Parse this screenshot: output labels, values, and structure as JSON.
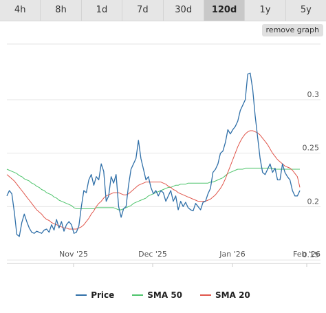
{
  "tabs": [
    {
      "label": "4h",
      "active": false
    },
    {
      "label": "8h",
      "active": false
    },
    {
      "label": "1d",
      "active": false
    },
    {
      "label": "7d",
      "active": false
    },
    {
      "label": "30d",
      "active": false
    },
    {
      "label": "120d",
      "active": true
    },
    {
      "label": "1y",
      "active": false
    },
    {
      "label": "5y",
      "active": false
    }
  ],
  "remove_button_label": "remove graph",
  "chart_data": {
    "type": "line",
    "x_ticks": [
      "Nov '25",
      "Dec '25",
      "Jan '26",
      "Feb '26"
    ],
    "y_ticks": [
      0.15,
      0.2,
      0.25,
      0.3
    ],
    "ylim": [
      0.15,
      0.33
    ],
    "grid": "horizontal",
    "legend_position": "bottom",
    "series": [
      {
        "name": "Price",
        "color": "#2f6fa8",
        "values": [
          0.21,
          0.215,
          0.212,
          0.195,
          0.174,
          0.172,
          0.185,
          0.193,
          0.186,
          0.18,
          0.176,
          0.175,
          0.177,
          0.176,
          0.175,
          0.178,
          0.179,
          0.176,
          0.183,
          0.178,
          0.188,
          0.18,
          0.186,
          0.177,
          0.183,
          0.186,
          0.183,
          0.175,
          0.176,
          0.182,
          0.2,
          0.215,
          0.213,
          0.225,
          0.23,
          0.22,
          0.228,
          0.225,
          0.24,
          0.233,
          0.205,
          0.21,
          0.228,
          0.222,
          0.23,
          0.2,
          0.19,
          0.198,
          0.2,
          0.22,
          0.235,
          0.24,
          0.245,
          0.262,
          0.245,
          0.235,
          0.225,
          0.228,
          0.218,
          0.212,
          0.215,
          0.21,
          0.215,
          0.213,
          0.205,
          0.21,
          0.215,
          0.205,
          0.21,
          0.197,
          0.205,
          0.2,
          0.204,
          0.199,
          0.197,
          0.196,
          0.203,
          0.2,
          0.197,
          0.204,
          0.205,
          0.212,
          0.217,
          0.232,
          0.235,
          0.24,
          0.25,
          0.252,
          0.26,
          0.272,
          0.268,
          0.272,
          0.275,
          0.28,
          0.29,
          0.295,
          0.3,
          0.324,
          0.325,
          0.31,
          0.285,
          0.265,
          0.245,
          0.232,
          0.23,
          0.235,
          0.24,
          0.232,
          0.236,
          0.225,
          0.225,
          0.24,
          0.232,
          0.228,
          0.225,
          0.215,
          0.21,
          0.21,
          0.215
        ]
      },
      {
        "name": "SMA 50",
        "color": "#4cc36a",
        "values": [
          0.235,
          0.234,
          0.233,
          0.232,
          0.231,
          0.229,
          0.228,
          0.226,
          0.225,
          0.224,
          0.222,
          0.221,
          0.219,
          0.218,
          0.216,
          0.215,
          0.213,
          0.212,
          0.211,
          0.209,
          0.208,
          0.206,
          0.205,
          0.204,
          0.203,
          0.202,
          0.201,
          0.199,
          0.198,
          0.198,
          0.198,
          0.198,
          0.198,
          0.198,
          0.198,
          0.198,
          0.199,
          0.199,
          0.199,
          0.199,
          0.199,
          0.199,
          0.199,
          0.199,
          0.198,
          0.197,
          0.197,
          0.198,
          0.199,
          0.2,
          0.201,
          0.203,
          0.204,
          0.205,
          0.206,
          0.207,
          0.208,
          0.21,
          0.211,
          0.212,
          0.213,
          0.214,
          0.215,
          0.216,
          0.217,
          0.218,
          0.218,
          0.219,
          0.22,
          0.22,
          0.221,
          0.221,
          0.221,
          0.222,
          0.222,
          0.222,
          0.222,
          0.222,
          0.222,
          0.222,
          0.222,
          0.222,
          0.223,
          0.223,
          0.224,
          0.225,
          0.226,
          0.227,
          0.229,
          0.231,
          0.232,
          0.233,
          0.234,
          0.235,
          0.235,
          0.235,
          0.236,
          0.236,
          0.236,
          0.236,
          0.236,
          0.236,
          0.236,
          0.236,
          0.236,
          0.236,
          0.236,
          0.236,
          0.235,
          0.235,
          0.235,
          0.235,
          0.235,
          0.235,
          0.235,
          0.235,
          0.235,
          0.235,
          0.235
        ]
      },
      {
        "name": "SMA 20",
        "color": "#e0554a",
        "values": [
          0.23,
          0.228,
          0.226,
          0.224,
          0.221,
          0.218,
          0.215,
          0.212,
          0.209,
          0.206,
          0.203,
          0.2,
          0.197,
          0.195,
          0.193,
          0.19,
          0.188,
          0.187,
          0.185,
          0.184,
          0.183,
          0.182,
          0.181,
          0.18,
          0.18,
          0.179,
          0.179,
          0.179,
          0.179,
          0.18,
          0.181,
          0.183,
          0.186,
          0.189,
          0.193,
          0.196,
          0.2,
          0.203,
          0.205,
          0.208,
          0.21,
          0.211,
          0.212,
          0.213,
          0.213,
          0.213,
          0.212,
          0.211,
          0.211,
          0.212,
          0.214,
          0.216,
          0.218,
          0.22,
          0.221,
          0.222,
          0.223,
          0.223,
          0.223,
          0.223,
          0.223,
          0.223,
          0.223,
          0.222,
          0.221,
          0.219,
          0.218,
          0.216,
          0.215,
          0.213,
          0.212,
          0.211,
          0.21,
          0.209,
          0.208,
          0.207,
          0.206,
          0.205,
          0.205,
          0.205,
          0.205,
          0.206,
          0.207,
          0.209,
          0.211,
          0.214,
          0.217,
          0.221,
          0.226,
          0.232,
          0.238,
          0.244,
          0.25,
          0.256,
          0.261,
          0.265,
          0.268,
          0.27,
          0.271,
          0.271,
          0.27,
          0.269,
          0.267,
          0.264,
          0.261,
          0.258,
          0.254,
          0.25,
          0.247,
          0.244,
          0.242,
          0.24,
          0.238,
          0.237,
          0.236,
          0.234,
          0.231,
          0.228,
          0.218
        ]
      }
    ]
  }
}
